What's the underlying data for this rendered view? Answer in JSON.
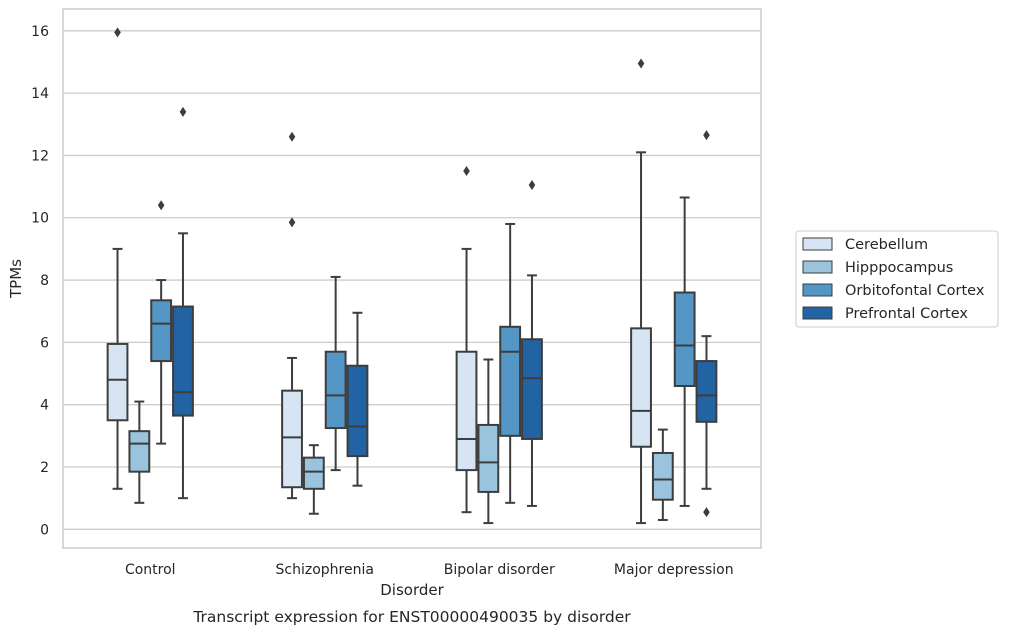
{
  "chart_data": {
    "type": "box",
    "title": "",
    "caption": "Transcript expression for ENST00000490035 by disorder",
    "xlabel": "Disorder",
    "ylabel": "TPMs",
    "ylim": [
      -0.6,
      16.7
    ],
    "yticks": [
      0,
      2,
      4,
      6,
      8,
      10,
      12,
      14,
      16
    ],
    "grid": "horizontal",
    "legend_position": "right",
    "categories": [
      "Control",
      "Schizophrenia",
      "Bipolar disorder",
      "Major depression"
    ],
    "series": [
      {
        "name": "Cerebellum",
        "color": "#d6e4f3",
        "boxes": [
          {
            "whislo": 1.3,
            "q1": 3.5,
            "med": 4.8,
            "q3": 5.95,
            "whishi": 9.0,
            "fliers": [
              15.95
            ]
          },
          {
            "whislo": 1.0,
            "q1": 1.35,
            "med": 2.95,
            "q3": 4.45,
            "whishi": 5.5,
            "fliers": [
              9.85,
              12.6
            ]
          },
          {
            "whislo": 0.55,
            "q1": 1.9,
            "med": 2.9,
            "q3": 5.7,
            "whishi": 9.0,
            "fliers": [
              11.5
            ]
          },
          {
            "whislo": 0.2,
            "q1": 2.65,
            "med": 3.8,
            "q3": 6.45,
            "whishi": 12.1,
            "fliers": [
              14.95
            ]
          }
        ]
      },
      {
        "name": "Hipppocampus",
        "color": "#9ac3de",
        "boxes": [
          {
            "whislo": 0.85,
            "q1": 1.85,
            "med": 2.75,
            "q3": 3.15,
            "whishi": 4.1,
            "fliers": []
          },
          {
            "whislo": 0.5,
            "q1": 1.3,
            "med": 1.85,
            "q3": 2.3,
            "whishi": 2.7,
            "fliers": []
          },
          {
            "whislo": 0.2,
            "q1": 1.2,
            "med": 2.15,
            "q3": 3.35,
            "whishi": 5.45,
            "fliers": []
          },
          {
            "whislo": 0.3,
            "q1": 0.95,
            "med": 1.6,
            "q3": 2.45,
            "whishi": 3.2,
            "fliers": []
          }
        ]
      },
      {
        "name": "Orbitofontal Cortex",
        "color": "#5496c6",
        "boxes": [
          {
            "whislo": 2.75,
            "q1": 5.4,
            "med": 6.6,
            "q3": 7.35,
            "whishi": 8.0,
            "fliers": [
              10.4
            ]
          },
          {
            "whislo": 1.9,
            "q1": 3.25,
            "med": 4.3,
            "q3": 5.7,
            "whishi": 8.1,
            "fliers": []
          },
          {
            "whislo": 0.85,
            "q1": 3.0,
            "med": 5.7,
            "q3": 6.5,
            "whishi": 9.8,
            "fliers": []
          },
          {
            "whislo": 0.75,
            "q1": 4.6,
            "med": 5.9,
            "q3": 7.6,
            "whishi": 10.65,
            "fliers": []
          }
        ]
      },
      {
        "name": "Prefrontal Cortex",
        "color": "#2263a3",
        "boxes": [
          {
            "whislo": 1.0,
            "q1": 3.65,
            "med": 4.4,
            "q3": 7.15,
            "whishi": 9.5,
            "fliers": [
              13.4
            ]
          },
          {
            "whislo": 1.4,
            "q1": 2.35,
            "med": 3.3,
            "q3": 5.25,
            "whishi": 6.95,
            "fliers": []
          },
          {
            "whislo": 0.75,
            "q1": 2.9,
            "med": 4.85,
            "q3": 6.1,
            "whishi": 8.15,
            "fliers": [
              11.05
            ]
          },
          {
            "whislo": 1.3,
            "q1": 3.45,
            "med": 4.3,
            "q3": 5.4,
            "whishi": 6.2,
            "fliers": [
              0.55,
              12.65
            ]
          }
        ]
      }
    ]
  }
}
